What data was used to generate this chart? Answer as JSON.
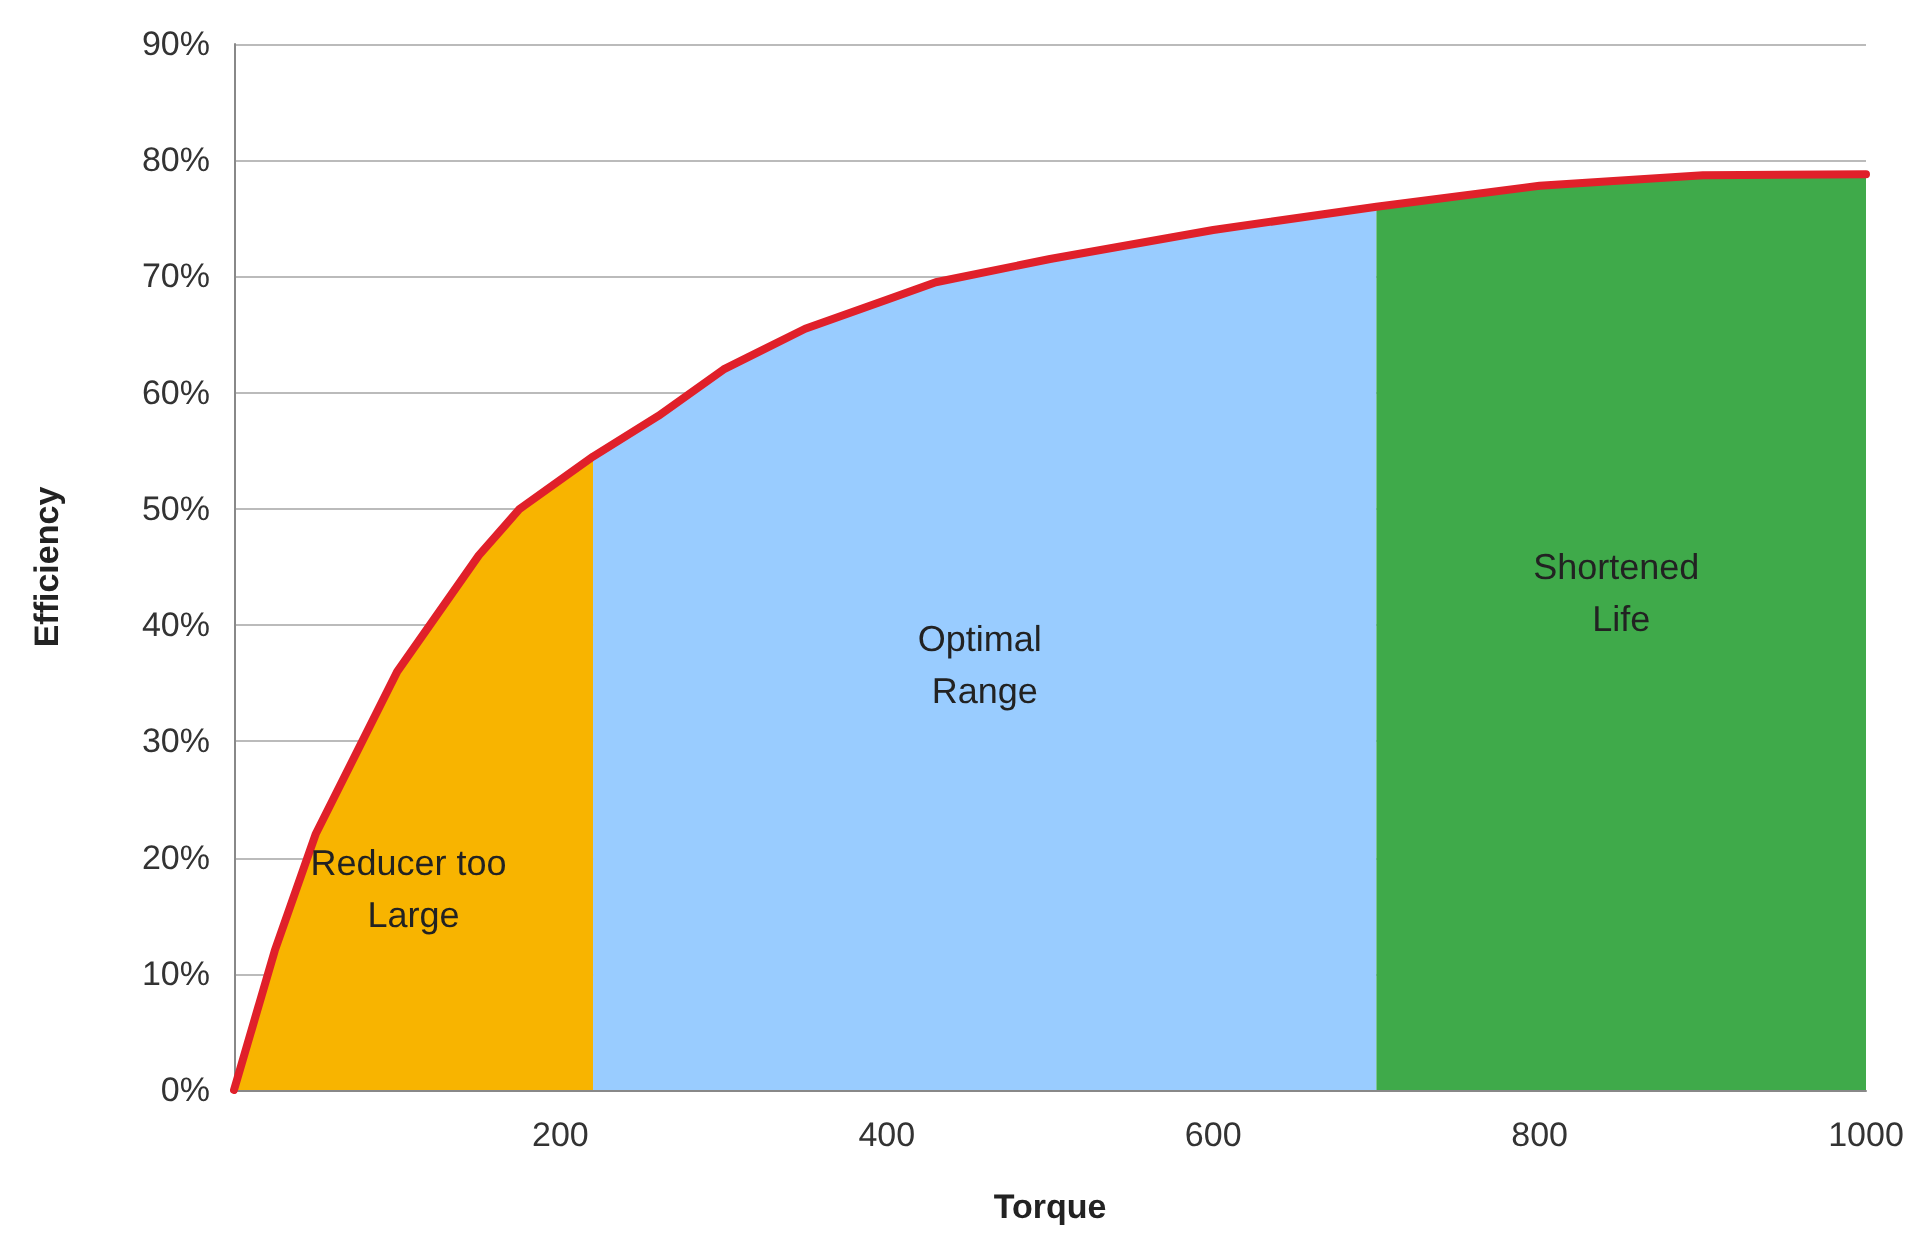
{
  "chart_data": {
    "type": "line",
    "xlabel": "Torque",
    "ylabel": "Efficiency",
    "xlim": [
      0,
      1000
    ],
    "xticks": [
      200,
      400,
      600,
      800,
      1000
    ],
    "ylim": [
      0,
      90
    ],
    "yticks": [
      {
        "value": 0,
        "label": "0%"
      },
      {
        "value": 10,
        "label": "10%"
      },
      {
        "value": 20,
        "label": "20%"
      },
      {
        "value": 30,
        "label": "30%"
      },
      {
        "value": 40,
        "label": "40%"
      },
      {
        "value": 50,
        "label": "50%"
      },
      {
        "value": 60,
        "label": "60%"
      },
      {
        "value": 70,
        "label": "70%"
      },
      {
        "value": 80,
        "label": "80%"
      },
      {
        "value": 90,
        "label": "90%"
      }
    ],
    "grid": "y",
    "legend": false,
    "marker": "none",
    "line_style": "solid",
    "series": [
      {
        "type": "area",
        "name": "Reducer too Large",
        "color": "#f8b400",
        "x": [
          0,
          25,
          50,
          100,
          150,
          175,
          220
        ],
        "values": [
          0,
          12,
          22,
          36,
          46,
          50,
          54.5
        ]
      },
      {
        "type": "area",
        "name": "Optimal Range",
        "color": "#99ccff",
        "x": [
          220,
          260,
          300,
          350,
          400,
          430,
          500,
          600,
          700
        ],
        "values": [
          54.5,
          58,
          62,
          65.5,
          68,
          69.5,
          71.5,
          74,
          76
        ]
      },
      {
        "type": "area",
        "name": "Shortened Life",
        "color": "#3faa4a",
        "x": [
          700,
          800,
          900,
          1000
        ],
        "values": [
          76,
          77.8,
          78.7,
          78.8
        ]
      },
      {
        "color": "#e0202a",
        "x": [
          0,
          25,
          50,
          100,
          150,
          175,
          220,
          260,
          300,
          350,
          400,
          430,
          500,
          600,
          700,
          800,
          900,
          1000
        ],
        "values": [
          0,
          12,
          22,
          36,
          46,
          50,
          54.5,
          58,
          62,
          65.5,
          68,
          69.5,
          71.5,
          74,
          76,
          77.8,
          78.7,
          78.8
        ]
      }
    ]
  }
}
